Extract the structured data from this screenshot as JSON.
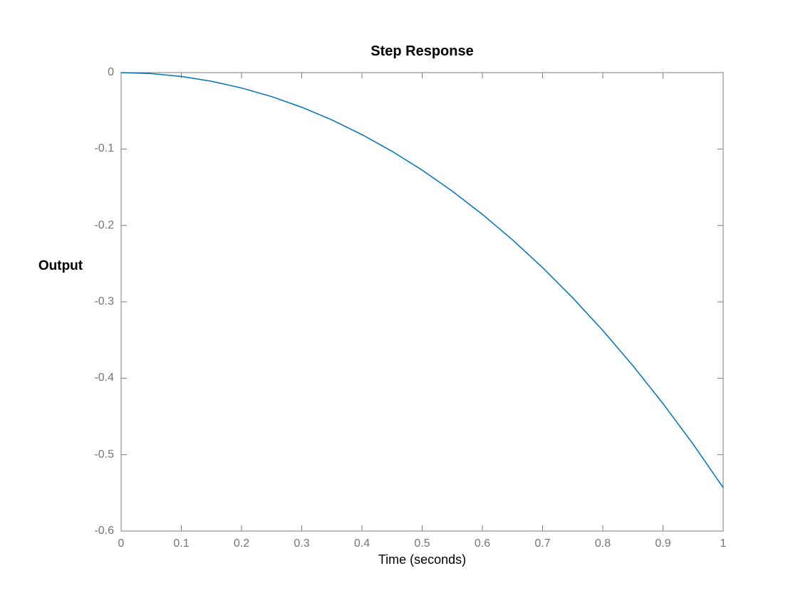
{
  "chart_data": {
    "type": "line",
    "title": "Step Response",
    "xlabel": "Time (seconds)",
    "ylabel": "Output",
    "xlim": [
      0,
      1
    ],
    "ylim": [
      -0.6,
      0
    ],
    "grid": false,
    "box": true,
    "tick_direction": "in",
    "legend": "none",
    "xticks": [
      0,
      0.1,
      0.2,
      0.3,
      0.4,
      0.5,
      0.6,
      0.7,
      0.8,
      0.9,
      1
    ],
    "xtick_labels": [
      "0",
      "0.1",
      "0.2",
      "0.3",
      "0.4",
      "0.5",
      "0.6",
      "0.7",
      "0.8",
      "0.9",
      "1"
    ],
    "yticks": [
      0,
      -0.1,
      -0.2,
      -0.3,
      -0.4,
      -0.5,
      -0.6
    ],
    "ytick_labels": [
      "0",
      "-0.1",
      "-0.2",
      "-0.3",
      "-0.4",
      "-0.5",
      "-0.6"
    ],
    "series": [
      {
        "name": "step-response-curve",
        "x": [
          0,
          0.05,
          0.1,
          0.15,
          0.2,
          0.25,
          0.3,
          0.35,
          0.4,
          0.45,
          0.5,
          0.55,
          0.6,
          0.65,
          0.7,
          0.75,
          0.8,
          0.85,
          0.9,
          0.95,
          1.0
        ],
        "y": [
          0,
          -0.0013,
          -0.005,
          -0.0113,
          -0.0201,
          -0.0314,
          -0.0453,
          -0.0619,
          -0.0811,
          -0.103,
          -0.1276,
          -0.1551,
          -0.1855,
          -0.2188,
          -0.2552,
          -0.2947,
          -0.3374,
          -0.3835,
          -0.4331,
          -0.4862,
          -0.5431
        ]
      }
    ],
    "colors": {
      "line": "#0072BD",
      "axis": "#7b7b7b",
      "tick_label": "#757575",
      "background": "#ffffff"
    }
  }
}
